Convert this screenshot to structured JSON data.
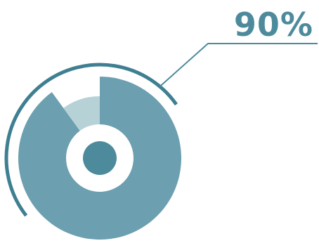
{
  "chart_data": {
    "type": "pie",
    "title": "",
    "slices": [
      {
        "label": "",
        "value": 90,
        "color": "#6c9fb0"
      },
      {
        "label": "",
        "value": 10,
        "color": "#b7d2d7"
      }
    ],
    "value_label": "90%",
    "colors": {
      "main": "#6c9fb0",
      "remainder": "#b7d2d7",
      "outer_ring": "#3f7f92",
      "center_dot": "#4c8a9c",
      "leader_line": "#4c8a9c",
      "label_text": "#4c8a9c"
    }
  }
}
